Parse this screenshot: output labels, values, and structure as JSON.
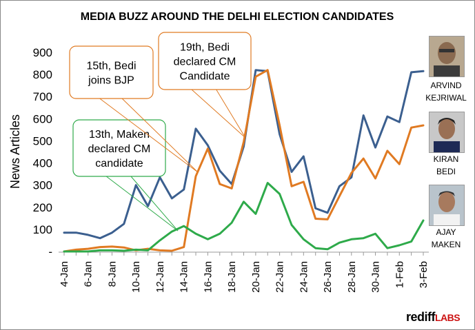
{
  "chart_data": {
    "type": "line",
    "title": "MEDIA BUZZ AROUND THE DELHI ELECTION CANDIDATES",
    "ylabel": "News Articles",
    "xlabel": "",
    "ylim": [
      0,
      900
    ],
    "yticks": [
      "-",
      "100",
      "200",
      "300",
      "400",
      "500",
      "600",
      "700",
      "800",
      "900"
    ],
    "grid": false,
    "x": [
      "4-Jan",
      "5-Jan",
      "6-Jan",
      "7-Jan",
      "8-Jan",
      "9-Jan",
      "10-Jan",
      "11-Jan",
      "12-Jan",
      "13-Jan",
      "14-Jan",
      "15-Jan",
      "16-Jan",
      "17-Jan",
      "18-Jan",
      "19-Jan",
      "20-Jan",
      "21-Jan",
      "22-Jan",
      "23-Jan",
      "24-Jan",
      "25-Jan",
      "26-Jan",
      "27-Jan",
      "28-Jan",
      "29-Jan",
      "30-Jan",
      "31-Jan",
      "1-Feb",
      "2-Feb",
      "3-Feb"
    ],
    "xtick_labels": [
      "4-Jan",
      "",
      "6-Jan",
      "",
      "8-Jan",
      "",
      "10-Jan",
      "",
      "12-Jan",
      "",
      "14-Jan",
      "",
      "16-Jan",
      "",
      "18-Jan",
      "",
      "20-Jan",
      "",
      "22-Jan",
      "",
      "24-Jan",
      "",
      "26-Jan",
      "",
      "28-Jan",
      "",
      "30-Jan",
      "",
      "1-Feb",
      "",
      "3-Feb"
    ],
    "series": [
      {
        "name": "ARVIND KEJRIWAL",
        "color": "#3b5f8f",
        "values": [
          85,
          85,
          75,
          60,
          85,
          125,
          300,
          205,
          335,
          240,
          280,
          555,
          480,
          365,
          305,
          475,
          820,
          815,
          530,
          360,
          430,
          195,
          175,
          295,
          335,
          615,
          470,
          610,
          585,
          810,
          815
        ]
      },
      {
        "name": "KIRAN BEDI",
        "color": "#e07a22",
        "values": [
          0,
          8,
          12,
          20,
          22,
          18,
          5,
          12,
          5,
          3,
          20,
          340,
          465,
          305,
          285,
          495,
          790,
          820,
          570,
          295,
          315,
          148,
          145,
          250,
          355,
          420,
          330,
          455,
          395,
          560,
          570
        ]
      },
      {
        "name": "AJAY MAKEN",
        "color": "#2eaa4a",
        "values": [
          0,
          0,
          0,
          5,
          5,
          3,
          8,
          5,
          50,
          90,
          115,
          80,
          55,
          80,
          130,
          225,
          170,
          310,
          260,
          120,
          55,
          15,
          10,
          40,
          55,
          60,
          80,
          15,
          28,
          45,
          140
        ]
      }
    ],
    "annotations": [
      {
        "id": "maken",
        "text": "13th, Maken declared CM candidate",
        "lines": [
          "13th, Maken",
          "declared CM",
          "candidate"
        ],
        "color": "#2eaa4a",
        "target_index": 9
      },
      {
        "id": "bedi-bjp",
        "text": "15th, Bedi joins BJP",
        "lines": [
          "15th, Bedi",
          "joins BJP"
        ],
        "color": "#e07a22",
        "target_index": 11
      },
      {
        "id": "bedi-cm",
        "text": "19th, Bedi declared CM Candidate",
        "lines": [
          "19th, Bedi",
          "declared CM",
          "Candidate"
        ],
        "color": "#e07a22",
        "target_index": 15
      }
    ]
  },
  "candidates": {
    "kejriwal": {
      "line1": "ARVIND",
      "line2": "KEJRIWAL"
    },
    "bedi": {
      "line1": "KIRAN",
      "line2": "BEDI"
    },
    "maken": {
      "line1": "AJAY",
      "line2": "MAKEN"
    }
  },
  "logo": {
    "main": "rediff",
    "sub": "LABS"
  }
}
